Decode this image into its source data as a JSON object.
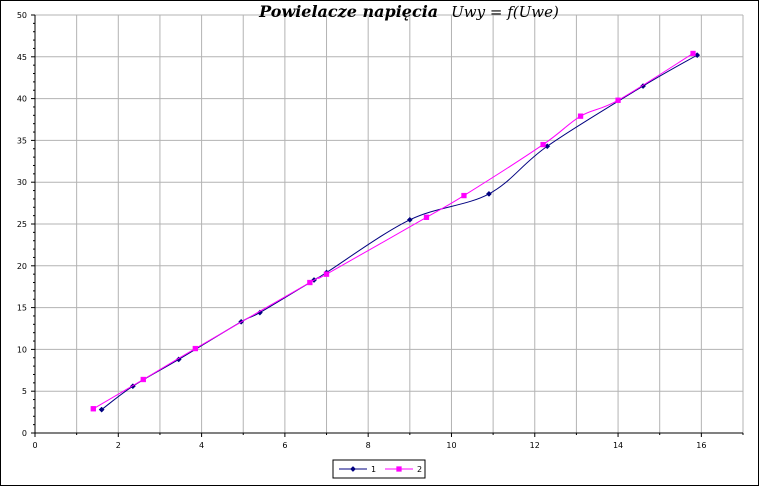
{
  "chart_data": {
    "type": "line",
    "title_main": "Powielacze napięcia",
    "title_formula": "Uwy = f(Uwe)",
    "xlabel": "",
    "ylabel": "",
    "xlim": [
      0,
      17
    ],
    "ylim": [
      0,
      50
    ],
    "x_ticks": [
      "0",
      "2",
      "4",
      "6",
      "8",
      "10",
      "12",
      "14",
      "16"
    ],
    "y_ticks": [
      "0",
      "5",
      "10",
      "15",
      "20",
      "25",
      "30",
      "35",
      "40",
      "45",
      "50"
    ],
    "grid": true,
    "legend_position": "bottom",
    "series": [
      {
        "name": "1",
        "color": "#000080",
        "marker": "diamond",
        "points": [
          [
            1.6,
            2.8
          ],
          [
            2.35,
            5.6
          ],
          [
            3.45,
            8.8
          ],
          [
            4.95,
            13.3
          ],
          [
            5.4,
            14.4
          ],
          [
            6.7,
            18.3
          ],
          [
            7.0,
            19.2
          ],
          [
            9.0,
            25.5
          ],
          [
            10.9,
            28.6
          ],
          [
            12.3,
            34.3
          ],
          [
            14.6,
            41.5
          ],
          [
            15.9,
            45.2
          ]
        ]
      },
      {
        "name": "2",
        "color": "#FF00FF",
        "marker": "square",
        "points": [
          [
            1.4,
            2.9
          ],
          [
            2.6,
            6.4
          ],
          [
            3.85,
            10.1
          ],
          [
            6.6,
            18.0
          ],
          [
            7.0,
            19.0
          ],
          [
            9.4,
            25.8
          ],
          [
            10.3,
            28.4
          ],
          [
            12.2,
            34.5
          ],
          [
            13.1,
            37.9
          ],
          [
            14.0,
            39.8
          ],
          [
            15.8,
            45.4
          ]
        ]
      }
    ]
  }
}
